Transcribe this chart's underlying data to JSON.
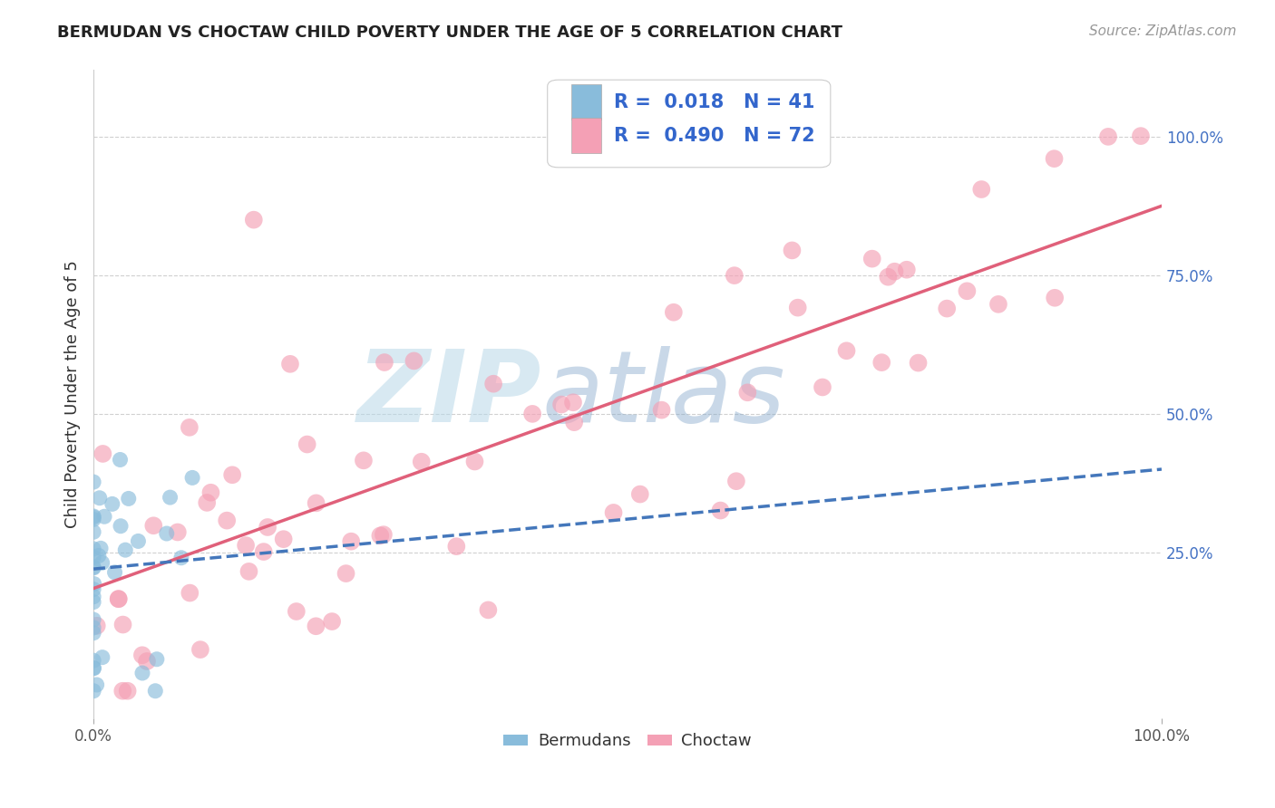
{
  "title": "BERMUDAN VS CHOCTAW CHILD POVERTY UNDER THE AGE OF 5 CORRELATION CHART",
  "source": "Source: ZipAtlas.com",
  "ylabel": "Child Poverty Under the Age of 5",
  "xlim": [
    0,
    1
  ],
  "ylim": [
    -0.05,
    1.12
  ],
  "bermudans_label": "Bermudans",
  "choctaw_label": "Choctaw",
  "R_bermudans": "0.018",
  "N_bermudans": "41",
  "R_choctaw": "0.490",
  "N_choctaw": "72",
  "bermudans_color": "#89bcdb",
  "choctaw_color": "#f4a0b5",
  "bermudans_line_color": "#4477bb",
  "choctaw_line_color": "#e0607a",
  "background_color": "#ffffff",
  "watermark_zip": "ZIP",
  "watermark_atlas": "atlas",
  "grid_color": "#d0d0d0",
  "legend_text_color": "#3366cc",
  "right_tick_color": "#4472c4",
  "title_fontsize": 13,
  "source_fontsize": 11,
  "choctaw_line_intercept": 0.185,
  "choctaw_line_slope": 0.69,
  "bermudans_line_intercept": 0.22,
  "bermudans_line_slope": 0.18
}
